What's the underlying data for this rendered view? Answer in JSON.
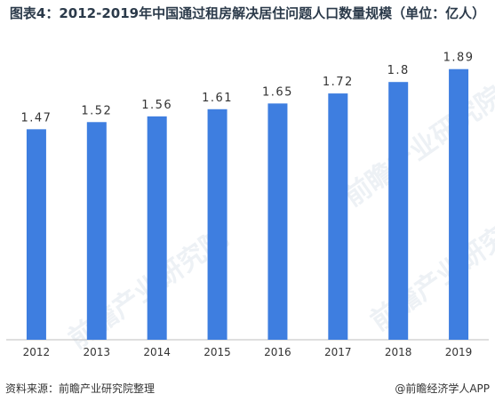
{
  "title": "图表4：2012-2019年中国通过租房解决居住问题人口数量规模（单位：亿人）",
  "source": "资料来源：前瞻产业研究院整理",
  "credit": "@前瞻经济学人APP",
  "watermark": "前瞻产业研究院",
  "colors": {
    "bar": "#3e7ee0",
    "axis": "#bfbfbf",
    "text": "#333333",
    "title": "#2b3a4a"
  },
  "chart_data": {
    "type": "bar",
    "title": "图表4：2012-2019年中国通过租房解决居住问题人口数量规模（单位：亿人）",
    "categories": [
      "2012",
      "2013",
      "2014",
      "2015",
      "2016",
      "2017",
      "2018",
      "2019"
    ],
    "values": [
      1.47,
      1.52,
      1.56,
      1.61,
      1.65,
      1.72,
      1.8,
      1.89
    ],
    "labels": [
      "1.47",
      "1.52",
      "1.56",
      "1.61",
      "1.65",
      "1.72",
      "1.8",
      "1.89"
    ],
    "xlabel": "",
    "ylabel": "",
    "ylim": [
      0,
      2.0
    ],
    "grid": false,
    "legend": "none"
  }
}
